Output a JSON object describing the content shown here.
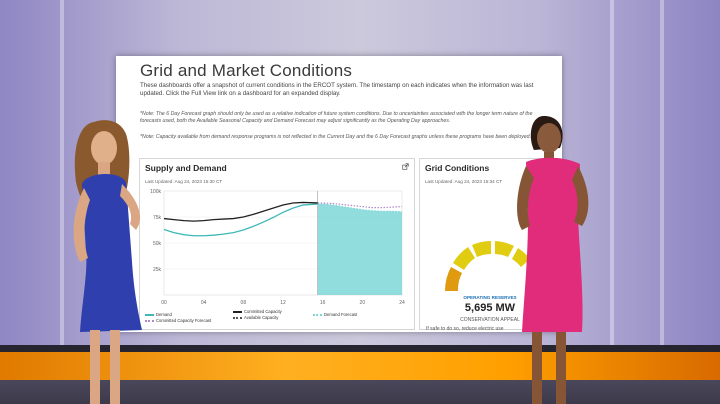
{
  "page": {
    "title": "Grid and Market Conditions",
    "intro": "These dashboards offer a snapshot of current conditions in the ERCOT system. The timestamp on each indicates when the information was last updated. Click the Full View link on a dashboard for an expanded display.",
    "note1": "*Note: The 6 Day Forecast graph should only be used as a relative indication of future system conditions. Due to uncertainties associated with the longer term nature of the forecasts used, both the Available Seasonal Capacity and Demand Forecast may adjust significantly as the Operating Day approaches.",
    "note2": "*Note: Capacity available from demand response programs is not reflected in the Current Day and the 6 Day Forecast graphs unless these programs have been deployed."
  },
  "supply_demand": {
    "title": "Supply and Demand",
    "last_updated": "Last Updated: Aug 24, 2023 15:30 CT",
    "legend": {
      "demand": "Demand",
      "committed_capacity": "Committed Capacity",
      "committed_capacity_forecast": "Committed Capacity Forecast",
      "available_capacity": "Available Capacity",
      "demand_forecast": "Demand Forecast"
    },
    "icon": "expand-icon"
  },
  "grid_conditions": {
    "title": "Grid Conditions",
    "last_updated": "Last Updated: Aug 24, 2023 15:34 CT",
    "operating_reserves_label": "OPERATING RESERVES",
    "operating_reserves_value": "5,695 MW",
    "status": "CONSERVATION APPEAL",
    "message": "If safe to do so, reduce electric use"
  },
  "chart_data": {
    "type": "line",
    "title": "Supply and Demand",
    "x_ticks": [
      "00",
      "04",
      "08",
      "12",
      "16",
      "20",
      "24"
    ],
    "y_ticks": [
      "25k",
      "50k",
      "75k",
      "100k"
    ],
    "xlim": [
      0,
      24
    ],
    "ylim": [
      0,
      100000
    ],
    "now_hour": 15.5,
    "series": [
      {
        "name": "Demand",
        "color": "#3fb8b8",
        "x": [
          0,
          1,
          2,
          3,
          4,
          5,
          6,
          7,
          8,
          9,
          10,
          11,
          12,
          13,
          14,
          15.5
        ],
        "y": [
          63000,
          60000,
          58000,
          57000,
          57000,
          57500,
          58500,
          60000,
          62500,
          66000,
          70000,
          74500,
          79500,
          83500,
          86500,
          87500
        ]
      },
      {
        "name": "Committed Capacity",
        "color": "#222222",
        "x": [
          0,
          1,
          2,
          3,
          4,
          5,
          6,
          7,
          8,
          9,
          10,
          11,
          12,
          13,
          14,
          15.5
        ],
        "y": [
          73500,
          72500,
          71500,
          71000,
          71500,
          72500,
          73000,
          73500,
          75000,
          77500,
          80500,
          83500,
          86500,
          88500,
          89000,
          88500
        ]
      },
      {
        "name": "Demand Forecast",
        "color": "#7ed6d6",
        "x": [
          15.5,
          16,
          17,
          18,
          19,
          20,
          21,
          22,
          23,
          24
        ],
        "y": [
          87500,
          87500,
          86500,
          85000,
          83500,
          82000,
          81000,
          80500,
          80500,
          80000
        ]
      },
      {
        "name": "Committed Capacity Forecast",
        "color": "#b08ac8",
        "x": [
          15.5,
          16,
          17,
          18,
          19,
          20,
          21,
          22,
          23,
          24
        ],
        "y": [
          88500,
          88500,
          88000,
          87000,
          86000,
          85000,
          84000,
          84000,
          84500,
          85000
        ]
      }
    ]
  },
  "colors": {
    "gauge_yellow": "#e0cc10",
    "gauge_orange": "#e09a10",
    "accent_blue": "#1b6fb3"
  }
}
